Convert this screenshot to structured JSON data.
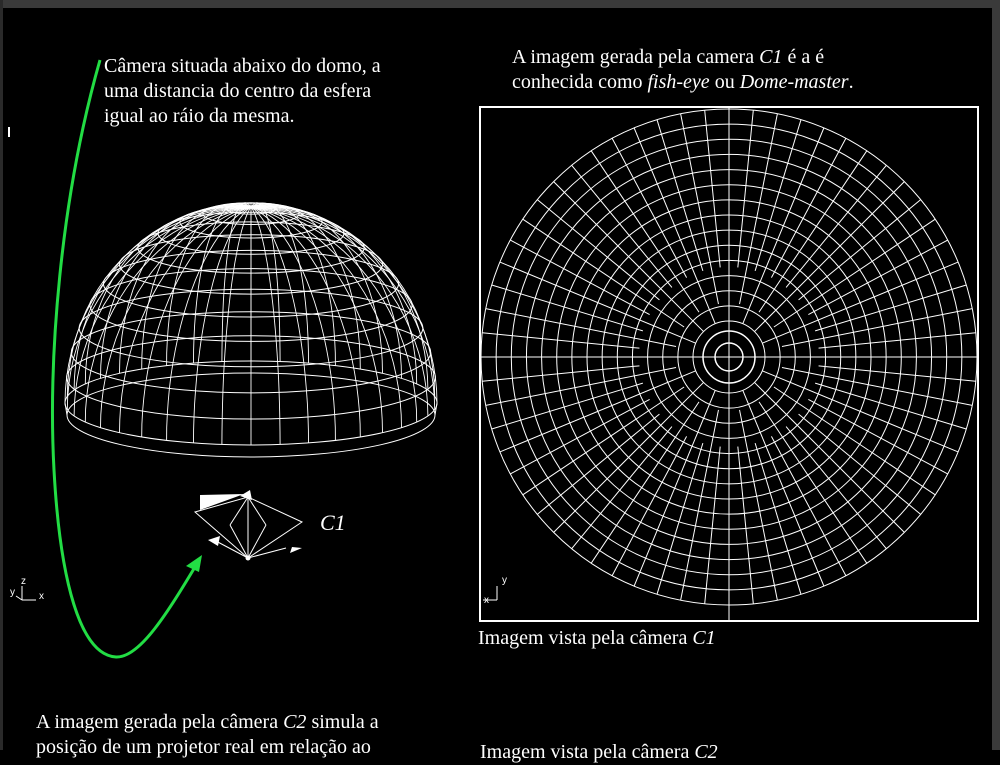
{
  "left_note": {
    "line1": "Câmera situada abaixo do domo, a",
    "line2": "uma distancia do centro da esfera",
    "line3": "igual ao ráio da mesma."
  },
  "right_note": {
    "line1_a": "A imagem gerada pela camera ",
    "line1_cam": "C1",
    "line1_b": " é a é",
    "line2_a": "conhecida como ",
    "line2_fish": "fish-eye",
    "line2_b": " ou ",
    "line2_dome": "Dome-master",
    "line2_c": "."
  },
  "camera_label": "C1",
  "caption_c1": {
    "prefix": "Imagem vista pela câmera ",
    "cam": "C1"
  },
  "bottom_note": {
    "line1_a": "A imagem gerada pela câmera ",
    "line1_cam": "C2",
    "line1_b": " simula a",
    "line2": "posição de um projetor real em relação ao"
  },
  "caption_c2": {
    "prefix": "Imagem vista pela câmera ",
    "cam": "C2"
  },
  "axes_left": {
    "z": "z",
    "y": "y",
    "x": "x"
  },
  "axes_right": {
    "y": "y",
    "x": "x"
  },
  "colors": {
    "background": "#000000",
    "wire": "#ffffff",
    "arrow": "#22dd44",
    "frame": "#3a3a3a"
  }
}
